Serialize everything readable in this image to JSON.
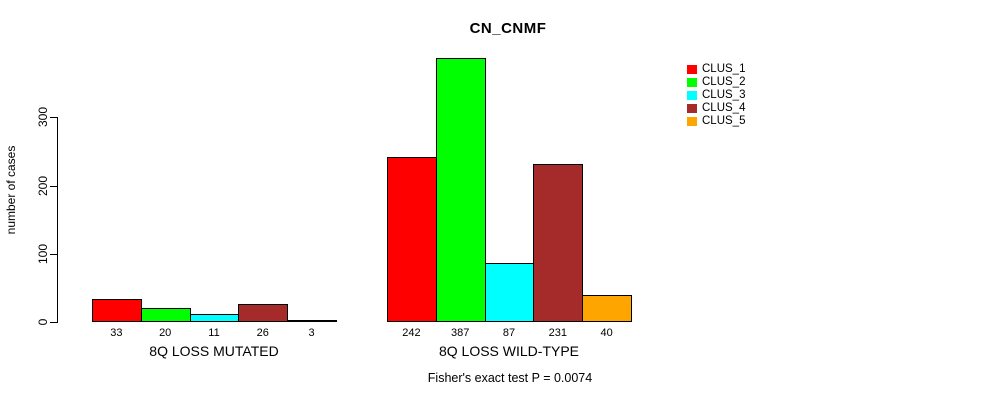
{
  "chart_data": {
    "type": "bar",
    "title": "CN_CNMF",
    "ylabel": "number of cases",
    "xlabel": "",
    "groups": [
      "8Q LOSS MUTATED",
      "8Q LOSS WILD-TYPE"
    ],
    "series": [
      {
        "name": "CLUS_1",
        "color": "#ff0000",
        "values": [
          33,
          242
        ]
      },
      {
        "name": "CLUS_2",
        "color": "#00ff00",
        "values": [
          20,
          387
        ]
      },
      {
        "name": "CLUS_3",
        "color": "#00ffff",
        "values": [
          11,
          87
        ]
      },
      {
        "name": "CLUS_4",
        "color": "#a52a2a",
        "values": [
          26,
          231
        ]
      },
      {
        "name": "CLUS_5",
        "color": "#ffa500",
        "values": [
          3,
          40
        ]
      }
    ],
    "bar_value_labels": [
      [
        "33",
        "20",
        "11",
        "26",
        "3"
      ],
      [
        "242",
        "387",
        "87",
        "231",
        "40"
      ]
    ],
    "yticks": [
      0,
      100,
      200,
      300
    ],
    "ylim": [
      0,
      387
    ],
    "grid": false,
    "legend_position": "top-right",
    "annotation": "Fisher's exact test P = 0.0074",
    "axis_color": "#000000",
    "background_color": "#ffffff"
  }
}
